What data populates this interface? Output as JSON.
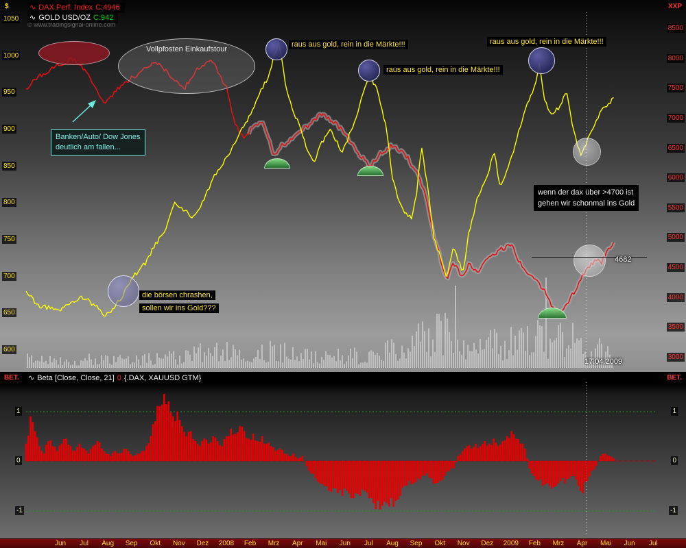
{
  "window": {
    "top_left_unit": "$",
    "top_right_unit": "XXP",
    "beta_corner_left": "BET.",
    "beta_corner_right": "BET."
  },
  "top_chart": {
    "watermark": "© www.tradingsignal-online.com",
    "legend": {
      "dax_wave": "∿",
      "dax_label": "DAX Perf. Index",
      "dax_close": "C:4946",
      "gold_wave": "∿",
      "gold_label": "GOLD USD/OZ",
      "gold_close": "C:942"
    },
    "left_axis": [
      "1050",
      "1000",
      "950",
      "900",
      "850",
      "800",
      "750",
      "700",
      "650",
      "600"
    ],
    "right_axis": [
      "8500",
      "8000",
      "7500",
      "7000",
      "6500",
      "6000",
      "5500",
      "5000",
      "4500",
      "4000",
      "3500",
      "3000"
    ],
    "annotations": {
      "vollpfosten": "Vollpfosten Einkaufstour",
      "banken_line1": "Banken/Auto/ Dow Jones",
      "banken_line2": "deutlich am fallen...",
      "raus": "raus aus gold, rein in die  Märkte!!!",
      "boersen_line1": "die börsen chrashen,",
      "boersen_line2": "sollen wir ins Gold???",
      "dax4700_line1": "wenn der dax über >4700 ist",
      "dax4700_line2": "gehen wir schonmal ins Gold",
      "price_marker": "4682",
      "date_label": "17.04.2009"
    }
  },
  "bottom_chart": {
    "legend_wave": "∿",
    "legend_label": "Beta [Close, Close, 21]",
    "legend_zero": "0",
    "legend_suffix": "{.DAX, XAUUSD GTM}",
    "axis": [
      "1",
      "0",
      "-1"
    ]
  },
  "time_axis": [
    "Jun",
    "Jul",
    "Aug",
    "Sep",
    "Okt",
    "Nov",
    "Dez",
    "2008",
    "Feb",
    "Mrz",
    "Apr",
    "Mai",
    "Jun",
    "Jul",
    "Aug",
    "Sep",
    "Okt",
    "Nov",
    "Dez",
    "2009",
    "Feb",
    "Mrz",
    "Apr",
    "Mai",
    "Jun",
    "Jul"
  ],
  "chart_data": [
    {
      "type": "line",
      "title": "DAX Perf. Index vs GOLD USD/OZ with volume",
      "x_encoding": "fraction of plot width, 0 = mid-May 2007, 0.929 = last data (Apr/Mai 2009)",
      "x_range_labels": "Jun 2007 – Jul 2009",
      "legend_position": "top-left",
      "grid": false,
      "series": [
        {
          "name": "DAX Perf. Index",
          "color": "#e11212",
          "axis": "right",
          "ylim": [
            3000,
            8500
          ],
          "last_close": 4946,
          "points": [
            [
              0,
              7500
            ],
            [
              0.02,
              7700
            ],
            [
              0.054,
              7900
            ],
            [
              0.075,
              8000
            ],
            [
              0.09,
              7850
            ],
            [
              0.11,
              7500
            ],
            [
              0.125,
              7250
            ],
            [
              0.15,
              7550
            ],
            [
              0.17,
              7700
            ],
            [
              0.19,
              7850
            ],
            [
              0.205,
              7950
            ],
            [
              0.22,
              7800
            ],
            [
              0.235,
              7650
            ],
            [
              0.25,
              7500
            ],
            [
              0.265,
              7750
            ],
            [
              0.279,
              7900
            ],
            [
              0.295,
              7950
            ],
            [
              0.317,
              7500
            ],
            [
              0.33,
              6900
            ],
            [
              0.345,
              6700
            ],
            [
              0.36,
              6850
            ],
            [
              0.375,
              6950
            ],
            [
              0.392,
              6400
            ],
            [
              0.405,
              6550
            ],
            [
              0.42,
              6650
            ],
            [
              0.43,
              6800
            ],
            [
              0.45,
              6900
            ],
            [
              0.466,
              7080
            ],
            [
              0.48,
              7000
            ],
            [
              0.5,
              6800
            ],
            [
              0.52,
              6500
            ],
            [
              0.542,
              6200
            ],
            [
              0.56,
              6400
            ],
            [
              0.58,
              6560
            ],
            [
              0.6,
              6400
            ],
            [
              0.617,
              6100
            ],
            [
              0.63,
              5800
            ],
            [
              0.645,
              5000
            ],
            [
              0.654,
              4700
            ],
            [
              0.665,
              4300
            ],
            [
              0.675,
              4600
            ],
            [
              0.69,
              4350
            ],
            [
              0.7,
              4550
            ],
            [
              0.715,
              4450
            ],
            [
              0.73,
              4700
            ],
            [
              0.75,
              4800
            ],
            [
              0.767,
              4900
            ],
            [
              0.78,
              4600
            ],
            [
              0.79,
              4450
            ],
            [
              0.805,
              4300
            ],
            [
              0.82,
              4100
            ],
            [
              0.83,
              3900
            ],
            [
              0.842,
              3700
            ],
            [
              0.855,
              3900
            ],
            [
              0.867,
              4100
            ],
            [
              0.879,
              4350
            ],
            [
              0.89,
              4500
            ],
            [
              0.9,
              4650
            ],
            [
              0.91,
              4600
            ],
            [
              0.92,
              4800
            ],
            [
              0.929,
              4946
            ]
          ]
        },
        {
          "name": "GOLD USD/OZ",
          "color": "#ffff00",
          "axis": "left",
          "ylim": [
            600,
            1050
          ],
          "last_close": 942,
          "points": [
            [
              0,
              680
            ],
            [
              0.02,
              660
            ],
            [
              0.054,
              655
            ],
            [
              0.075,
              665
            ],
            [
              0.09,
              672
            ],
            [
              0.11,
              660
            ],
            [
              0.125,
              645
            ],
            [
              0.15,
              670
            ],
            [
              0.17,
              700
            ],
            [
              0.19,
              720
            ],
            [
              0.205,
              745
            ],
            [
              0.22,
              760
            ],
            [
              0.235,
              800
            ],
            [
              0.25,
              790
            ],
            [
              0.265,
              780
            ],
            [
              0.279,
              800
            ],
            [
              0.3,
              840
            ],
            [
              0.317,
              860
            ],
            [
              0.335,
              890
            ],
            [
              0.355,
              920
            ],
            [
              0.37,
              950
            ],
            [
              0.385,
              975
            ],
            [
              0.392,
              1000
            ],
            [
              0.4,
              1020
            ],
            [
              0.41,
              960
            ],
            [
              0.42,
              930
            ],
            [
              0.43,
              910
            ],
            [
              0.445,
              870
            ],
            [
              0.455,
              855
            ],
            [
              0.466,
              880
            ],
            [
              0.48,
              900
            ],
            [
              0.5,
              870
            ],
            [
              0.515,
              900
            ],
            [
              0.53,
              940
            ],
            [
              0.542,
              975
            ],
            [
              0.555,
              955
            ],
            [
              0.57,
              900
            ],
            [
              0.58,
              830
            ],
            [
              0.595,
              790
            ],
            [
              0.61,
              780
            ],
            [
              0.617,
              810
            ],
            [
              0.625,
              880
            ],
            [
              0.635,
              820
            ],
            [
              0.645,
              750
            ],
            [
              0.654,
              730
            ],
            [
              0.665,
              700
            ],
            [
              0.675,
              740
            ],
            [
              0.685,
              720
            ],
            [
              0.69,
              700
            ],
            [
              0.7,
              760
            ],
            [
              0.715,
              810
            ],
            [
              0.73,
              840
            ],
            [
              0.74,
              870
            ],
            [
              0.75,
              820
            ],
            [
              0.767,
              860
            ],
            [
              0.78,
              900
            ],
            [
              0.79,
              930
            ],
            [
              0.805,
              960
            ],
            [
              0.812,
              990
            ],
            [
              0.82,
              940
            ],
            [
              0.83,
              920
            ],
            [
              0.842,
              930
            ],
            [
              0.855,
              950
            ],
            [
              0.865,
              900
            ],
            [
              0.875,
              870
            ],
            [
              0.879,
              865
            ],
            [
              0.89,
              890
            ],
            [
              0.9,
              910
            ],
            [
              0.91,
              925
            ],
            [
              0.92,
              935
            ],
            [
              0.929,
              942
            ]
          ]
        }
      ],
      "volume_envelope": [
        [
          0,
          0.15
        ],
        [
          0.05,
          0.12
        ],
        [
          0.1,
          0.18
        ],
        [
          0.15,
          0.14
        ],
        [
          0.2,
          0.16
        ],
        [
          0.25,
          0.2
        ],
        [
          0.3,
          0.32
        ],
        [
          0.32,
          0.45
        ],
        [
          0.35,
          0.25
        ],
        [
          0.4,
          0.3
        ],
        [
          0.45,
          0.22
        ],
        [
          0.5,
          0.2
        ],
        [
          0.55,
          0.25
        ],
        [
          0.6,
          0.35
        ],
        [
          0.65,
          0.7
        ],
        [
          0.68,
          0.55
        ],
        [
          0.7,
          0.45
        ],
        [
          0.73,
          0.4
        ],
        [
          0.77,
          0.45
        ],
        [
          0.8,
          0.5
        ],
        [
          0.84,
          0.55
        ],
        [
          0.88,
          0.45
        ],
        [
          0.929,
          0.3
        ]
      ]
    },
    {
      "type": "bar",
      "title": "Beta [Close, Close, 21] {.DAX, XAUUSD GTM}",
      "ylim": [
        -1.5,
        1.5
      ],
      "gridlines": [
        1,
        -1
      ],
      "zero_line": 0,
      "bar_color": "#e80000",
      "values": [
        0.35,
        0.9,
        0.6,
        0.3,
        0.15,
        0.4,
        0.3,
        0.2,
        0.35,
        0.45,
        0.3,
        0.2,
        0.35,
        0.25,
        0.15,
        0.3,
        0.4,
        0.25,
        0.15,
        0.1,
        0.2,
        0.15,
        0.25,
        0.2,
        0.1,
        0.15,
        0.2,
        0.3,
        0.5,
        0.8,
        1.1,
        1.35,
        1.2,
        0.9,
        1.0,
        0.7,
        0.5,
        0.6,
        0.4,
        0.3,
        0.45,
        0.35,
        0.5,
        0.4,
        0.3,
        0.5,
        0.65,
        0.55,
        0.7,
        0.6,
        0.45,
        0.55,
        0.4,
        0.5,
        0.35,
        0.3,
        0.2,
        0.25,
        0.15,
        0.1,
        0.15,
        0.05,
        0.1,
        -0.1,
        -0.25,
        -0.35,
        -0.45,
        -0.5,
        -0.6,
        -0.55,
        -0.65,
        -0.7,
        -0.6,
        -0.75,
        -0.65,
        -0.7,
        -0.6,
        -0.75,
        -0.85,
        -0.8,
        -0.9,
        -0.85,
        -0.75,
        -0.8,
        -0.7,
        -0.5,
        -0.4,
        -0.45,
        -0.35,
        -0.3,
        -0.25,
        -0.35,
        -0.45,
        -0.4,
        -0.3,
        -0.2,
        -0.15,
        0.1,
        0.2,
        0.3,
        0.25,
        0.35,
        0.3,
        0.4,
        0.35,
        0.45,
        0.3,
        0.4,
        0.5,
        0.6,
        0.45,
        0.35,
        0.25,
        -0.15,
        -0.3,
        -0.4,
        -0.5,
        -0.45,
        -0.55,
        -0.5,
        -0.4,
        -0.45,
        -0.35,
        -0.3,
        -0.5,
        -0.65,
        -0.4,
        -0.2,
        -0.1,
        0.1,
        0.15,
        0.1,
        0.05
      ]
    }
  ]
}
